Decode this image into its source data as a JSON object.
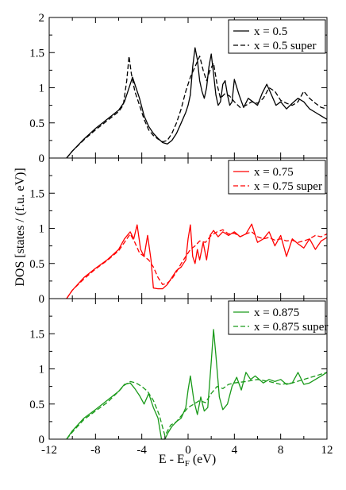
{
  "chart_data": {
    "type": "line",
    "xlabel": "E - E",
    "xlabel_subscript": "F",
    "xlabel_unit": " (eV)",
    "ylabel": "DOS [states / (f.u. eV)]",
    "xlim": [
      -12,
      12
    ],
    "x_ticks": [
      "-12",
      "-8",
      "-4",
      "0",
      "4",
      "8",
      "12"
    ],
    "panels": [
      {
        "color": "#000000",
        "ylim": [
          0,
          2
        ],
        "y_ticks": [
          "0",
          "0.5",
          "1",
          "1.5",
          "2"
        ],
        "legend_position": "top-right",
        "series": [
          {
            "name": "x = 0.5",
            "style": "solid",
            "x": [
              -10.5,
              -10.0,
              -9.0,
              -8.0,
              -7.0,
              -6.0,
              -5.5,
              -5.0,
              -4.8,
              -4.5,
              -4.2,
              -3.8,
              -3.4,
              -3.0,
              -2.6,
              -2.2,
              -1.8,
              -1.4,
              -1.0,
              -0.6,
              -0.2,
              0.0,
              0.2,
              0.4,
              0.6,
              0.8,
              1.0,
              1.2,
              1.4,
              1.6,
              1.8,
              2.0,
              2.2,
              2.4,
              2.6,
              2.8,
              3.0,
              3.2,
              3.4,
              3.6,
              3.8,
              4.0,
              4.4,
              4.8,
              5.2,
              5.6,
              6.0,
              6.4,
              6.8,
              7.2,
              7.6,
              8.0,
              8.5,
              9.0,
              9.5,
              10.0,
              10.5,
              11.0,
              11.5,
              12.0
            ],
            "y": [
              0.0,
              0.1,
              0.27,
              0.42,
              0.55,
              0.68,
              0.8,
              1.05,
              1.15,
              1.0,
              0.85,
              0.6,
              0.45,
              0.35,
              0.28,
              0.22,
              0.2,
              0.25,
              0.35,
              0.5,
              0.65,
              0.75,
              0.9,
              1.3,
              1.57,
              1.4,
              1.1,
              0.95,
              0.85,
              1.0,
              1.3,
              1.48,
              1.2,
              0.9,
              0.75,
              0.8,
              1.05,
              1.1,
              0.9,
              0.75,
              0.8,
              1.12,
              0.9,
              0.72,
              0.85,
              0.8,
              0.75,
              0.92,
              1.05,
              0.9,
              0.75,
              0.8,
              0.7,
              0.78,
              0.85,
              0.8,
              0.7,
              0.65,
              0.6,
              0.55
            ]
          },
          {
            "name": "x = 0.5 super",
            "style": "dashed",
            "x": [
              -10.5,
              -10.0,
              -9.0,
              -8.0,
              -7.0,
              -6.0,
              -5.6,
              -5.3,
              -5.1,
              -4.9,
              -4.6,
              -4.2,
              -3.8,
              -3.4,
              -3.0,
              -2.6,
              -2.2,
              -1.8,
              -1.4,
              -1.0,
              -0.6,
              -0.2,
              0.2,
              0.6,
              1.0,
              1.3,
              1.6,
              1.9,
              2.2,
              2.5,
              2.8,
              3.2,
              3.6,
              4.0,
              4.5,
              5.0,
              5.5,
              6.0,
              6.5,
              7.0,
              7.5,
              8.0,
              8.5,
              9.0,
              9.5,
              10.0,
              10.5,
              11.0,
              11.5,
              12.0
            ],
            "y": [
              0.0,
              0.1,
              0.26,
              0.4,
              0.53,
              0.66,
              0.75,
              1.1,
              1.45,
              1.2,
              0.95,
              0.75,
              0.55,
              0.4,
              0.32,
              0.27,
              0.23,
              0.25,
              0.35,
              0.5,
              0.7,
              0.95,
              1.15,
              1.3,
              1.45,
              1.25,
              1.1,
              1.25,
              1.35,
              1.05,
              0.85,
              0.92,
              0.88,
              0.8,
              0.72,
              0.75,
              0.8,
              0.78,
              0.85,
              1.0,
              0.95,
              0.82,
              0.78,
              0.75,
              0.8,
              0.95,
              0.85,
              0.78,
              0.72,
              0.7
            ]
          }
        ]
      },
      {
        "color": "#ff0000",
        "ylim": [
          0,
          2
        ],
        "y_ticks": [
          "0",
          "0.5",
          "1",
          "1.5",
          ""
        ],
        "legend_position": "top-right",
        "series": [
          {
            "name": "x = 0.75",
            "style": "solid",
            "x": [
              -10.5,
              -10.0,
              -9.0,
              -8.0,
              -7.0,
              -6.0,
              -5.5,
              -5.0,
              -4.7,
              -4.4,
              -4.1,
              -3.8,
              -3.5,
              -3.2,
              -3.0,
              -2.6,
              -2.2,
              -1.8,
              -1.4,
              -1.0,
              -0.6,
              -0.2,
              0.0,
              0.2,
              0.4,
              0.6,
              0.8,
              1.0,
              1.3,
              1.6,
              1.9,
              2.2,
              2.6,
              3.0,
              3.5,
              4.0,
              4.5,
              5.0,
              5.5,
              6.0,
              6.5,
              7.0,
              7.5,
              8.0,
              8.5,
              9.0,
              9.5,
              10.0,
              10.5,
              11.0,
              11.5,
              12.0
            ],
            "y": [
              0.0,
              0.12,
              0.3,
              0.43,
              0.55,
              0.7,
              0.85,
              0.95,
              0.85,
              1.05,
              0.7,
              0.6,
              0.9,
              0.55,
              0.15,
              0.14,
              0.14,
              0.2,
              0.3,
              0.4,
              0.45,
              0.55,
              0.85,
              1.05,
              0.6,
              0.5,
              0.7,
              0.55,
              0.8,
              0.55,
              0.9,
              0.97,
              0.88,
              0.95,
              0.9,
              0.95,
              0.88,
              0.92,
              1.06,
              0.8,
              0.85,
              0.95,
              0.75,
              0.9,
              0.6,
              0.85,
              0.78,
              0.72,
              0.85,
              0.7,
              0.82,
              0.87
            ]
          },
          {
            "name": "x = 0.75 super",
            "style": "dashed",
            "x": [
              -10.5,
              -10.0,
              -9.0,
              -8.0,
              -7.0,
              -6.0,
              -5.5,
              -5.0,
              -4.6,
              -4.2,
              -3.8,
              -3.4,
              -3.0,
              -2.6,
              -2.2,
              -1.8,
              -1.4,
              -1.0,
              -0.6,
              -0.2,
              0.2,
              0.6,
              1.0,
              1.5,
              2.0,
              2.5,
              3.0,
              3.5,
              4.0,
              4.5,
              5.0,
              5.5,
              6.0,
              6.5,
              7.0,
              7.5,
              8.0,
              8.5,
              9.0,
              9.5,
              10.0,
              10.5,
              11.0,
              11.5,
              12.0
            ],
            "y": [
              0.0,
              0.12,
              0.28,
              0.42,
              0.54,
              0.68,
              0.8,
              0.92,
              0.8,
              0.65,
              0.6,
              0.55,
              0.45,
              0.3,
              0.2,
              0.22,
              0.28,
              0.38,
              0.5,
              0.6,
              0.7,
              0.75,
              0.82,
              0.8,
              0.9,
              0.95,
              0.98,
              0.92,
              0.93,
              0.88,
              0.92,
              0.95,
              0.88,
              0.85,
              0.87,
              0.83,
              0.85,
              0.82,
              0.83,
              0.8,
              0.82,
              0.85,
              0.9,
              0.88,
              0.92
            ]
          }
        ]
      },
      {
        "color": "#1a9a1a",
        "ylim": [
          0,
          2
        ],
        "y_ticks": [
          "0",
          "0.5",
          "1",
          "1.5",
          ""
        ],
        "legend_position": "top-right",
        "series": [
          {
            "name": "x = 0.875",
            "style": "solid",
            "x": [
              -10.5,
              -10.0,
              -9.0,
              -8.0,
              -7.0,
              -6.0,
              -5.5,
              -5.0,
              -4.6,
              -4.2,
              -3.8,
              -3.4,
              -3.0,
              -2.6,
              -2.3,
              -2.0,
              -1.7,
              -1.4,
              -1.0,
              -0.6,
              -0.2,
              0.0,
              0.2,
              0.5,
              0.8,
              1.1,
              1.4,
              1.7,
              2.0,
              2.2,
              2.4,
              2.7,
              3.0,
              3.4,
              3.8,
              4.2,
              4.6,
              5.0,
              5.4,
              5.8,
              6.5,
              7.0,
              7.5,
              8.0,
              8.5,
              9.0,
              9.5,
              10.0,
              10.5,
              11.0,
              11.5,
              12.0
            ],
            "y": [
              0.0,
              0.12,
              0.3,
              0.42,
              0.55,
              0.68,
              0.78,
              0.8,
              0.72,
              0.62,
              0.5,
              0.65,
              0.45,
              0.3,
              0.0,
              0.0,
              0.1,
              0.18,
              0.25,
              0.3,
              0.45,
              0.7,
              0.9,
              0.55,
              0.35,
              0.6,
              0.4,
              0.45,
              1.1,
              1.56,
              1.2,
              0.6,
              0.42,
              0.5,
              0.75,
              0.88,
              0.7,
              0.95,
              0.85,
              0.9,
              0.8,
              0.85,
              0.82,
              0.85,
              0.78,
              0.8,
              0.95,
              0.78,
              0.8,
              0.85,
              0.9,
              0.95
            ]
          },
          {
            "name": "x = 0.875 super",
            "style": "dashed",
            "x": [
              -10.5,
              -10.0,
              -9.0,
              -8.0,
              -7.0,
              -6.0,
              -5.5,
              -5.0,
              -4.5,
              -4.0,
              -3.5,
              -3.0,
              -2.5,
              -2.0,
              -1.5,
              -1.0,
              -0.5,
              0.0,
              0.5,
              1.0,
              1.5,
              2.0,
              2.5,
              3.0,
              3.5,
              4.0,
              5.0,
              6.0,
              7.0,
              8.0,
              9.0,
              10.0,
              11.0,
              12.0
            ],
            "y": [
              0.0,
              0.1,
              0.28,
              0.4,
              0.52,
              0.68,
              0.77,
              0.82,
              0.8,
              0.75,
              0.68,
              0.55,
              0.35,
              0.05,
              0.2,
              0.25,
              0.35,
              0.45,
              0.5,
              0.55,
              0.52,
              0.65,
              0.75,
              0.72,
              0.78,
              0.8,
              0.82,
              0.85,
              0.82,
              0.78,
              0.8,
              0.85,
              0.9,
              0.95
            ]
          }
        ]
      }
    ]
  }
}
